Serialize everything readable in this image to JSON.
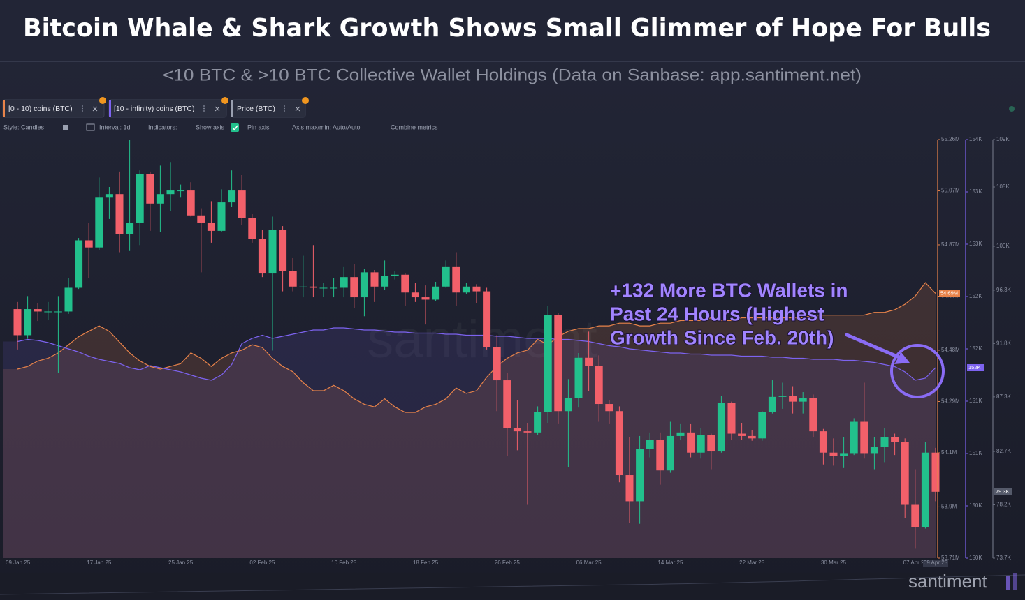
{
  "header": {
    "title": "Bitcoin Whale & Shark Growth Shows Small Glimmer of Hope For Bulls",
    "subtitle": "<10 BTC & >10 BTC Collective Wallet Holdings (Data on Sanbase: app.santiment.net)"
  },
  "toolbar": {
    "controls": [
      "Style: Candles",
      "Interval: 1d",
      "Indicators:",
      "Show axis",
      "Pin axis",
      "Axis max/min: Auto/Auto",
      "Combine metrics"
    ]
  },
  "watermark": "santiment",
  "brand": "santiment",
  "chart_data": {
    "type": "candlestick",
    "price_name": "Price (BTC)",
    "price_tag": "79.3K",
    "up_color": "#22c08c",
    "down_color": "#f2606a",
    "price_axis_color": "#6b7080",
    "categories": [
      "09 Jan 25",
      null,
      null,
      null,
      null,
      null,
      null,
      null,
      "17 Jan 25",
      null,
      null,
      null,
      null,
      null,
      null,
      null,
      "25 Jan 25",
      null,
      null,
      null,
      null,
      null,
      null,
      null,
      "02 Feb 25",
      null,
      null,
      null,
      null,
      null,
      null,
      null,
      "10 Feb 25",
      null,
      null,
      null,
      null,
      null,
      null,
      null,
      "18 Feb 25",
      null,
      null,
      null,
      null,
      null,
      null,
      null,
      "26 Feb 25",
      null,
      null,
      null,
      null,
      null,
      null,
      null,
      "06 Mar 25",
      null,
      null,
      null,
      null,
      null,
      null,
      null,
      "14 Mar 25",
      null,
      null,
      null,
      null,
      null,
      null,
      null,
      "22 Mar 25",
      null,
      null,
      null,
      null,
      null,
      null,
      null,
      "30 Mar 25",
      null,
      null,
      null,
      null,
      null,
      null,
      null,
      "07 Apr 25",
      null,
      "09 Apr 25"
    ],
    "open": [
      94700,
      92500,
      94700,
      94500,
      94500,
      94500,
      96500,
      100500,
      99900,
      104100,
      104400,
      101000,
      102000,
      106100,
      103600,
      104400,
      104700,
      104700,
      102600,
      102000,
      101300,
      103700,
      104700,
      102400,
      100600,
      97700,
      101400,
      97900,
      96600,
      96600,
      96500,
      96500,
      96500,
      97400,
      95700,
      97800,
      96600,
      97500,
      97600,
      96100,
      95700,
      95500,
      96600,
      98300,
      96100,
      96600,
      96200,
      91500,
      88700,
      84700,
      84400,
      84300,
      86000,
      94200,
      86100,
      87200,
      90600,
      89900,
      86700,
      86100,
      80700,
      78500,
      82900,
      83700,
      81100,
      84000,
      84300,
      82600,
      84100,
      82700,
      86800,
      84200,
      84000,
      83800,
      86000,
      87300,
      87400,
      86900,
      87200,
      84400,
      82600,
      82300,
      82500,
      85200,
      82500,
      83100,
      83900,
      83500,
      78200,
      76300,
      82600
    ],
    "high": [
      95300,
      95800,
      95200,
      95300,
      95800,
      97300,
      100700,
      102000,
      105800,
      105000,
      106300,
      109000,
      106400,
      106300,
      106800,
      107100,
      105200,
      105400,
      103200,
      103800,
      104800,
      106400,
      106000,
      102700,
      101400,
      102500,
      101700,
      99000,
      99200,
      100100,
      96900,
      97300,
      98300,
      98500,
      98100,
      98000,
      98800,
      97900,
      97700,
      96900,
      96700,
      97000,
      98800,
      99500,
      96900,
      96800,
      96500,
      92500,
      89300,
      87000,
      85100,
      86500,
      95000,
      94400,
      88800,
      91000,
      92800,
      90800,
      87000,
      86500,
      83900,
      84000,
      84300,
      84300,
      85200,
      85000,
      85000,
      84700,
      84200,
      87400,
      86900,
      85100,
      84500,
      86100,
      88700,
      88500,
      88200,
      87700,
      87500,
      84600,
      83800,
      83900,
      85500,
      88500,
      83900,
      84700,
      84200,
      83800,
      81200,
      83500,
      83000
    ],
    "low": [
      91300,
      92200,
      93700,
      93800,
      89300,
      94300,
      96400,
      97300,
      99700,
      102300,
      99500,
      99600,
      100100,
      101300,
      101200,
      103000,
      104100,
      102500,
      97800,
      100300,
      101200,
      103300,
      101800,
      100300,
      97400,
      91200,
      96200,
      96200,
      95700,
      95700,
      95700,
      95700,
      95700,
      94800,
      94100,
      95300,
      96300,
      97200,
      95000,
      95300,
      93400,
      95400,
      96500,
      95000,
      96000,
      95200,
      91300,
      86100,
      82300,
      82800,
      78200,
      84100,
      85100,
      85000,
      81400,
      86400,
      87800,
      85200,
      85000,
      80100,
      76700,
      76600,
      82200,
      79900,
      80900,
      83700,
      82200,
      82100,
      81200,
      82600,
      83700,
      83700,
      83600,
      83600,
      85900,
      86300,
      85900,
      85900,
      83900,
      81600,
      81500,
      81300,
      82400,
      82100,
      81200,
      81800,
      82400,
      77100,
      74500,
      76200,
      78500
    ],
    "close": [
      92500,
      94700,
      94500,
      94500,
      94500,
      96500,
      100500,
      99900,
      104100,
      104400,
      101000,
      102000,
      106100,
      103600,
      104400,
      104700,
      104700,
      102600,
      102000,
      101300,
      103700,
      104700,
      102400,
      100600,
      97700,
      101400,
      97900,
      96600,
      96600,
      96500,
      96500,
      96500,
      97400,
      95700,
      97800,
      96600,
      97500,
      97600,
      96100,
      95700,
      95500,
      96600,
      98300,
      96100,
      96600,
      96200,
      91500,
      88700,
      84700,
      84400,
      84300,
      86000,
      94200,
      86100,
      87200,
      90600,
      89900,
      86700,
      86100,
      80700,
      78500,
      82900,
      83700,
      81100,
      84000,
      84300,
      82600,
      84100,
      82700,
      86800,
      84200,
      84000,
      83800,
      86000,
      87300,
      87400,
      86900,
      87200,
      84400,
      82600,
      82300,
      82500,
      85200,
      82500,
      83100,
      83900,
      83500,
      78200,
      76300,
      82600,
      79300
    ],
    "ylim": [
      73700,
      109000
    ],
    "yticks": [
      {
        "value": 73700,
        "label": "73.7K"
      },
      {
        "value": 78200,
        "label": "78.2K"
      },
      {
        "value": 82700,
        "label": "82.7K"
      },
      {
        "value": 87300,
        "label": "87.3K"
      },
      {
        "value": 91800,
        "label": "91.8K"
      },
      {
        "value": 96300,
        "label": "96.3K"
      },
      {
        "value": 100000,
        "label": "100K"
      },
      {
        "value": 105000,
        "label": "105K"
      },
      {
        "value": 109000,
        "label": "109K"
      }
    ],
    "y2lim": [
      53710000,
      55260000
    ],
    "y2ticks": [
      {
        "value": 53710000,
        "label": "53.71M"
      },
      {
        "value": 53900000,
        "label": "53.9M"
      },
      {
        "value": 54100000,
        "label": "54.1M"
      },
      {
        "value": 54290000,
        "label": "54.29M"
      },
      {
        "value": 54480000,
        "label": "54.48M"
      },
      {
        "value": 54680000,
        "label": "54.68M"
      },
      {
        "value": 54870000,
        "label": "54.87M"
      },
      {
        "value": 55070000,
        "label": "55.07M"
      },
      {
        "value": 55260000,
        "label": "55.26M"
      }
    ],
    "y3lim": [
      149900,
      153900
    ],
    "y3ticks": [
      {
        "value": 149900,
        "label": "150K"
      },
      {
        "value": 150400,
        "label": "150K"
      },
      {
        "value": 150900,
        "label": "151K"
      },
      {
        "value": 151400,
        "label": "151K"
      },
      {
        "value": 151900,
        "label": "152K"
      },
      {
        "value": 152400,
        "label": "152K"
      },
      {
        "value": 152900,
        "label": "153K"
      },
      {
        "value": 153400,
        "label": "153K"
      },
      {
        "value": 153900,
        "label": "154K"
      }
    ],
    "series": [
      {
        "name": "[0 - 10) coins (BTC)",
        "color": "#e8834a",
        "axis": "y2",
        "tag": "54.69M",
        "values": [
          54410000,
          54420000,
          54440000,
          54450000,
          54470000,
          54500000,
          54530000,
          54550000,
          54570000,
          54550000,
          54510000,
          54470000,
          54440000,
          54420000,
          54410000,
          54420000,
          54430000,
          54470000,
          54450000,
          54420000,
          54450000,
          54470000,
          54480000,
          54500000,
          54490000,
          54450000,
          54420000,
          54400000,
          54360000,
          54330000,
          54330000,
          54350000,
          54330000,
          54300000,
          54280000,
          54270000,
          54300000,
          54270000,
          54250000,
          54250000,
          54270000,
          54280000,
          54300000,
          54340000,
          54320000,
          54330000,
          54380000,
          54420000,
          54450000,
          54470000,
          54480000,
          54520000,
          54500000,
          54530000,
          54550000,
          54560000,
          54560000,
          54570000,
          54570000,
          54580000,
          54580000,
          54570000,
          54570000,
          54580000,
          54580000,
          54590000,
          54590000,
          54590000,
          54600000,
          54590000,
          54590000,
          54600000,
          54600000,
          54600000,
          54600000,
          54600000,
          54600000,
          54600000,
          54610000,
          54610000,
          54610000,
          54610000,
          54610000,
          54610000,
          54620000,
          54620000,
          54630000,
          54650000,
          54680000,
          54730000,
          54690000
        ]
      },
      {
        "name": "[10 - infinity) coins (BTC)",
        "color": "#7d63f0",
        "axis": "y3",
        "tag": "152K",
        "values": [
          151970,
          151990,
          151980,
          151960,
          151930,
          151900,
          151870,
          151830,
          151800,
          151780,
          151760,
          151720,
          151700,
          151740,
          151720,
          151700,
          151680,
          151650,
          151620,
          151600,
          151650,
          151750,
          151950,
          152000,
          152030,
          152000,
          152020,
          152040,
          152060,
          152080,
          152080,
          152100,
          152100,
          152090,
          152080,
          152080,
          152070,
          152060,
          152060,
          152050,
          152050,
          152050,
          152040,
          152040,
          152030,
          152030,
          152030,
          152020,
          152020,
          152010,
          152000,
          152000,
          152000,
          151990,
          151990,
          151980,
          151970,
          151950,
          151930,
          151920,
          151900,
          151890,
          151880,
          151870,
          151860,
          151860,
          151850,
          151850,
          151840,
          151840,
          151840,
          151830,
          151830,
          151830,
          151820,
          151820,
          151810,
          151810,
          151800,
          151800,
          151800,
          151790,
          151790,
          151780,
          151770,
          151750,
          151730,
          151680,
          151600,
          151620,
          151720
        ]
      }
    ],
    "annotation": [
      "+132 More BTC Wallets in",
      "Past 24 Hours (Highest",
      "Growth Since Feb. 20th)"
    ]
  }
}
